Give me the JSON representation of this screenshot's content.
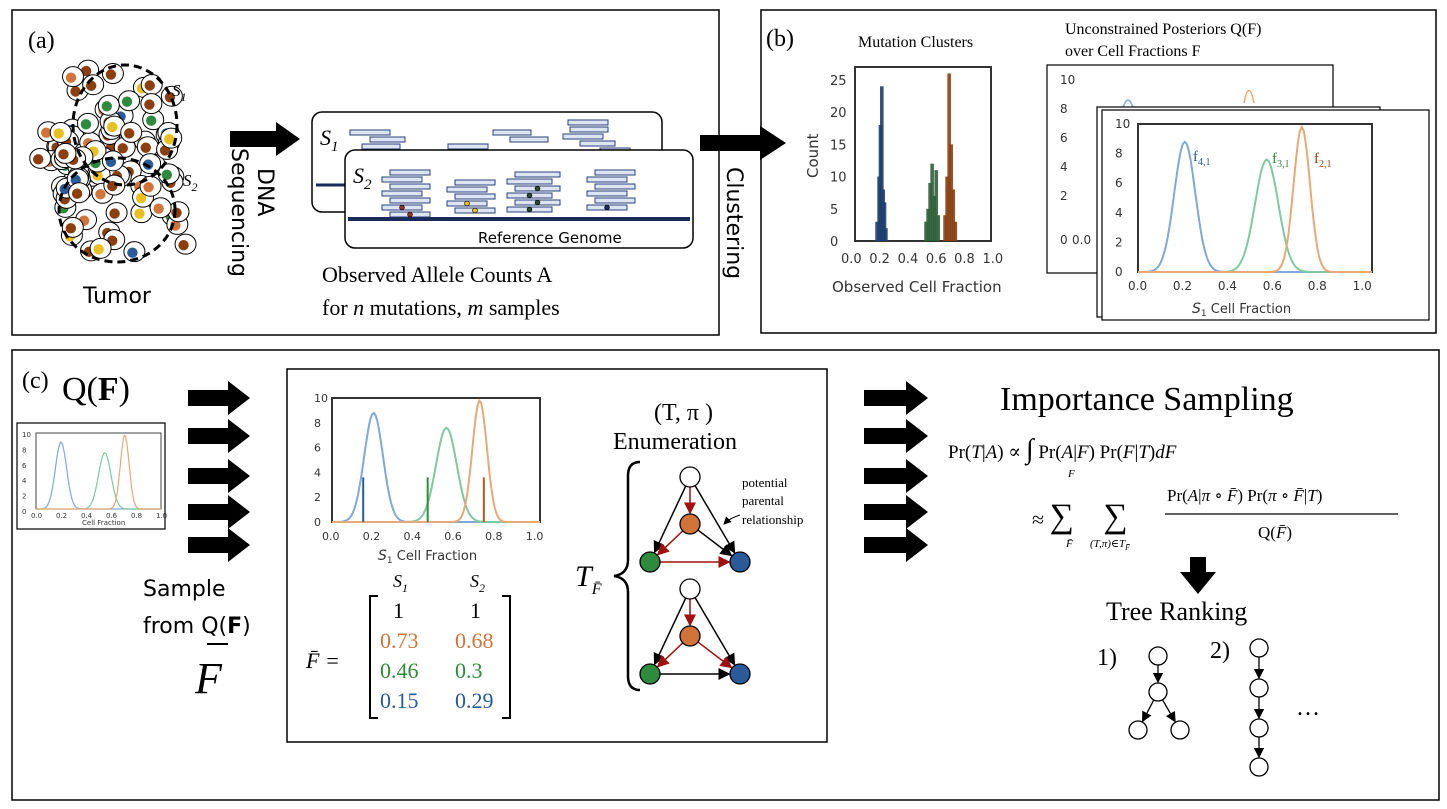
{
  "panel_a": {
    "label": "(a)",
    "s1": "S",
    "s1_sub": "1",
    "s2": "S",
    "s2_sub": "2",
    "tumor": "Tumor",
    "dna_line1": "DNA",
    "dna_line2": "Sequencing",
    "ref_genome": "Reference Genome",
    "observed_line1": "Observed Allele Counts A",
    "observed_line2_a": "for ",
    "observed_line2_n": "n",
    "observed_line2_b": " mutations, ",
    "observed_line2_m": "m",
    "observed_line2_c": " samples",
    "clustering": "Clustering"
  },
  "panel_b": {
    "label": "(b)",
    "hist_title": "Mutation Clusters",
    "hist_ylabel": "Count",
    "hist_xlabel": "Observed  Cell Fraction",
    "post_title_line1": "Unconstrained Posteriors Q(F)",
    "post_title_line2": "over Cell Fractions F",
    "post_xlabel": "S",
    "post_xlabel_sub": "1",
    "post_xlabel_rest": " Cell Fraction",
    "f4": "f",
    "f4_sub": "4,1",
    "f3": "f",
    "f3_sub": "3,1",
    "f2": "f",
    "f2_sub": "2,1"
  },
  "panel_c": {
    "label": "(c)",
    "qf": "Q(F)",
    "mini_xlabel": "Cell Fraction",
    "sample_line1": "Sample",
    "sample_line2": "from Q(F)",
    "fbar": "F",
    "plot_xlabel": "S",
    "plot_xlabel_sub": "1",
    "plot_xlabel_rest": " Cell Fraction",
    "matrix_lhs": "F̄ =",
    "matrix_col1": "S",
    "matrix_col1_sub": "1",
    "matrix_col2": "S",
    "matrix_col2_sub": "2",
    "matrix_rows": [
      {
        "c1": "1",
        "c2": "1"
      },
      {
        "c1": "0.73",
        "c2": "0.68"
      },
      {
        "c1": "0.46",
        "c2": "0.3"
      },
      {
        "c1": "0.15",
        "c2": "0.29"
      }
    ],
    "enum_line1": "(T, π )",
    "enum_line2": "Enumeration",
    "potential_line1": "potential",
    "potential_line2": "parental",
    "potential_line3": "relationship",
    "tau": "T",
    "tau_sub": "F̄",
    "is_title": "Importance Sampling",
    "eq1": "Pr(T|A) ∝ ∫ Pr(A|F) Pr(F|T)dF",
    "eq1_sub": "F",
    "eq2_lhs": "≈ Σ  Σ",
    "eq2_sub1": "F̄",
    "eq2_sub2": "(T,π)∈T",
    "eq2_num": "Pr(A|π ∘ F̄) Pr(π ∘ F̄|T)",
    "eq2_den": "Q(F̄)",
    "tree_ranking": "Tree Ranking",
    "rank1": "1)",
    "rank2": "2)",
    "ellipsis": "…"
  },
  "axis_ticks": {
    "hist_y": [
      "0",
      "5",
      "10",
      "15",
      "20",
      "25"
    ],
    "hist_x": [
      "0.0",
      "0.2",
      "0.4",
      "0.6",
      "0.8",
      "1.0"
    ],
    "post_y": [
      "0",
      "2",
      "4",
      "6",
      "8",
      "10"
    ],
    "post_x": [
      "0.0",
      "0.2",
      "0.4",
      "0.6",
      "0.8",
      "1.0"
    ],
    "back_y": [
      "10",
      "8",
      "6",
      "4",
      "2"
    ],
    "mini_y": [
      "10",
      "8",
      "6",
      "4",
      "2",
      "0"
    ],
    "mini_x": [
      "0.0",
      "0.2",
      "0.4",
      "0.6",
      "0.8",
      "1.0"
    ]
  },
  "colors": {
    "blue": "#2a5a9a",
    "green": "#2e8b3e",
    "orange": "#d2733a",
    "red_arrow": "#a01010",
    "curve_blue": "#7fa9d8",
    "curve_green": "#7fc9a0",
    "curve_orange": "#e8a878",
    "hist_blue": "#1e3f6e",
    "hist_green": "#2f5f3a",
    "hist_orange": "#8b3e10"
  }
}
